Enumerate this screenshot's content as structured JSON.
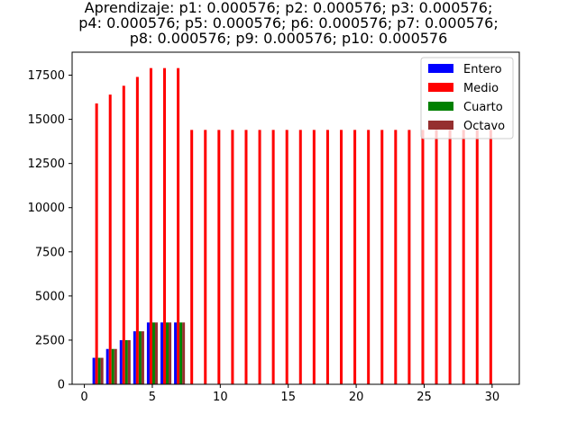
{
  "chart_data": {
    "type": "bar",
    "title_lines": [
      "Aprendizaje: p1: 0.000576; p2: 0.000576; p3: 0.000576;",
      "p4: 0.000576; p5: 0.000576; p6: 0.000576; p7: 0.000576;",
      "p8: 0.000576; p9: 0.000576; p10: 0.000576"
    ],
    "xlabel": "",
    "ylabel": "",
    "xlim": [
      -0.9,
      32.0
    ],
    "ylim": [
      0,
      18800
    ],
    "xticks": [
      0,
      5,
      10,
      15,
      20,
      25,
      30
    ],
    "yticks": [
      0,
      2500,
      5000,
      7500,
      10000,
      12500,
      15000,
      17500
    ],
    "grid": false,
    "legend_position": "upper right",
    "series": [
      {
        "name": "Entero",
        "color": "#0000ff",
        "x": [
          1,
          2,
          3,
          4,
          5,
          6,
          7
        ],
        "values": [
          1500,
          2000,
          2500,
          3000,
          3500,
          3500,
          3500
        ]
      },
      {
        "name": "Medio",
        "color": "#ff0000",
        "x": [
          1,
          2,
          3,
          4,
          5,
          6,
          7,
          8,
          9,
          10,
          11,
          12,
          13,
          14,
          15,
          16,
          17,
          18,
          19,
          20,
          21,
          22,
          23,
          24,
          25,
          26,
          27,
          28,
          29,
          30
        ],
        "values": [
          15900,
          16400,
          16900,
          17400,
          17900,
          17900,
          17900,
          14400,
          14400,
          14400,
          14400,
          14400,
          14400,
          14400,
          14400,
          14400,
          14400,
          14400,
          14400,
          14400,
          14400,
          14400,
          14400,
          14400,
          14400,
          14400,
          14400,
          14400,
          14400,
          14400
        ]
      },
      {
        "name": "Cuarto",
        "color": "#008000",
        "x": [
          1,
          2,
          3,
          4,
          5,
          6,
          7
        ],
        "values": [
          1500,
          2000,
          2500,
          3000,
          3500,
          3500,
          3500
        ]
      },
      {
        "name": "Octavo",
        "color": "#952f2f",
        "x": [
          1,
          2,
          3,
          4,
          5,
          6,
          7
        ],
        "values": [
          1500,
          2000,
          2500,
          3000,
          3500,
          3500,
          3500
        ]
      }
    ]
  }
}
